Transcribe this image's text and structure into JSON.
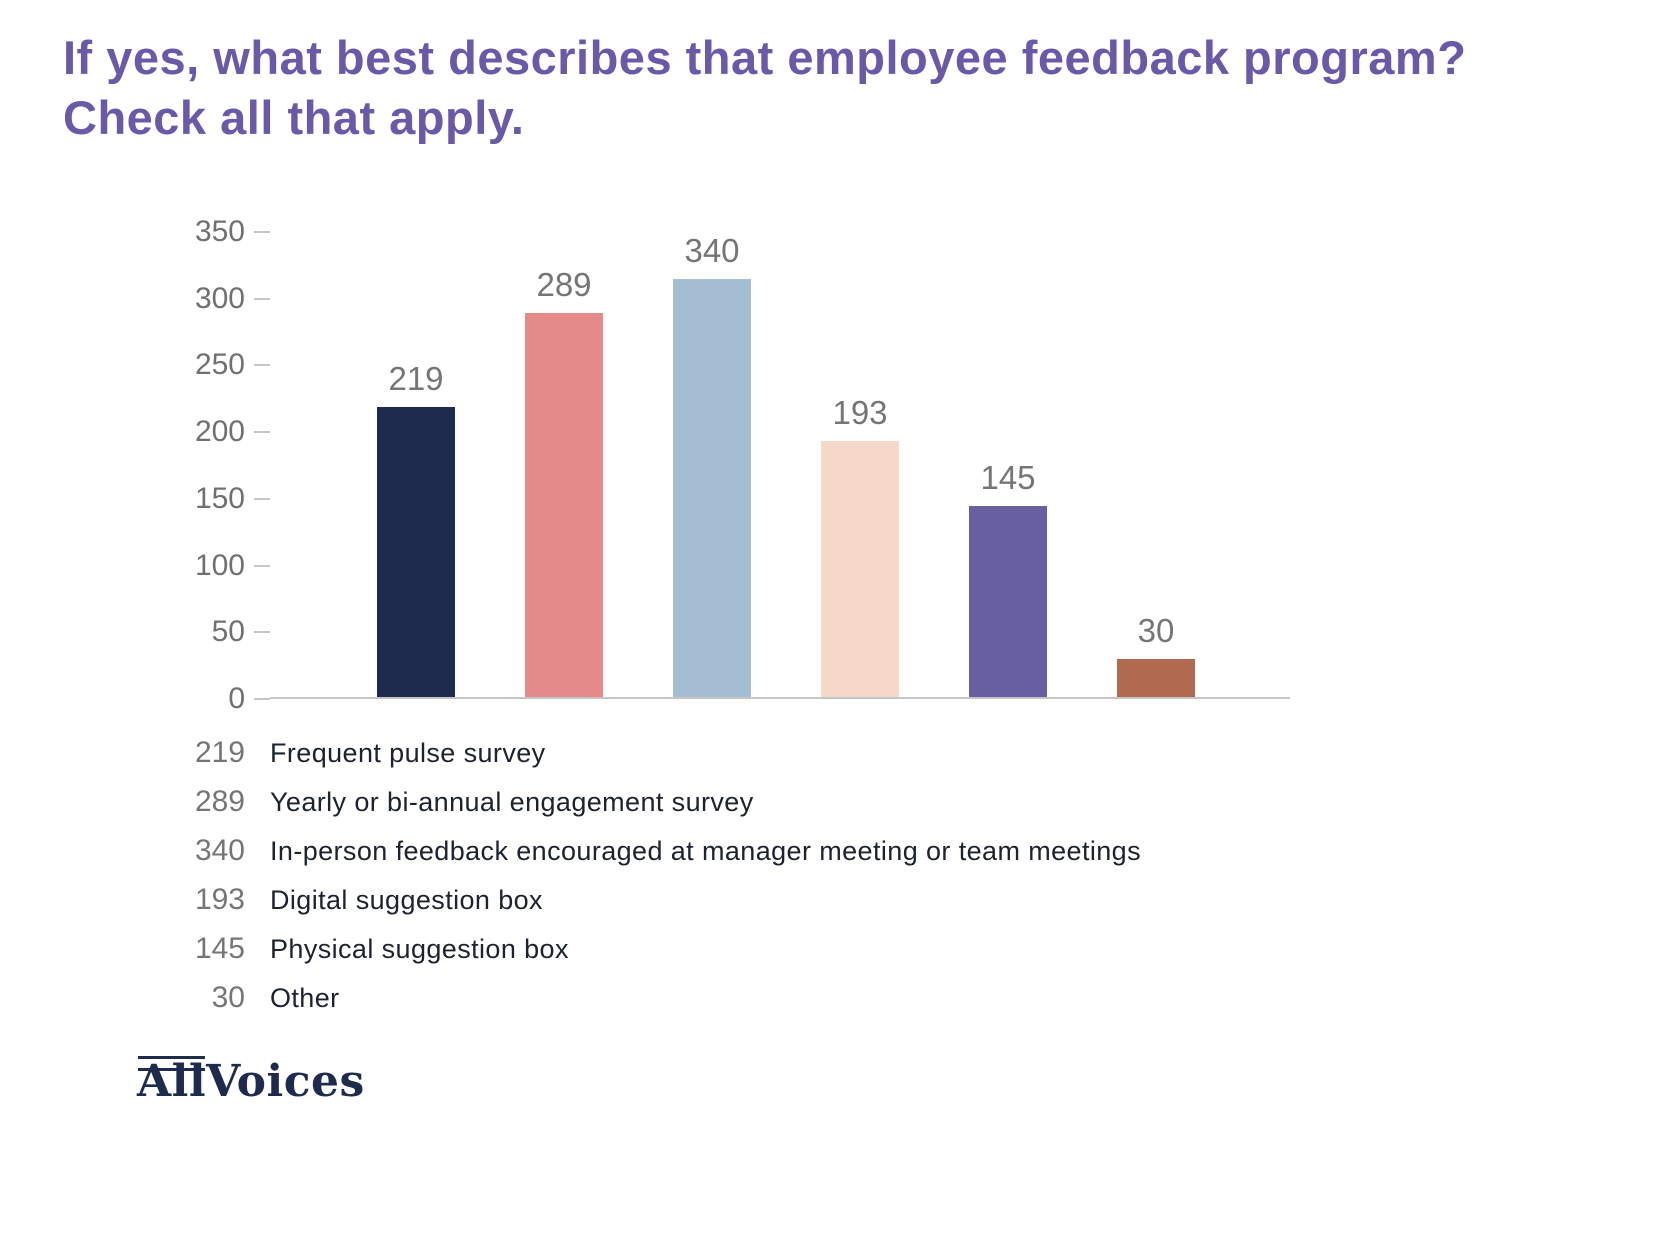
{
  "chart_data": {
    "type": "bar",
    "title": "If yes, what best describes that employee feedback program? Check all that apply.",
    "categories": [
      "Frequent pulse survey",
      "Yearly or bi-annual engagement survey",
      "In-person feedback encouraged at manager meeting or team meetings",
      "Digital suggestion box",
      "Physical suggestion box",
      "Other"
    ],
    "values": [
      219,
      289,
      340,
      193,
      145,
      30
    ],
    "bar_colors": [
      "#1e2b4d",
      "#e58a8b",
      "#a4bdd3",
      "#f6d8cb",
      "#675f9f",
      "#b06a50"
    ],
    "xlabel": "",
    "ylabel": "",
    "ylim": [
      0,
      350
    ],
    "yticks": [
      350,
      300,
      250,
      200,
      150,
      100,
      50,
      0
    ],
    "grid": false,
    "legend_position": "below"
  },
  "legend": {
    "items": [
      {
        "value": "219",
        "label": "Frequent pulse survey"
      },
      {
        "value": "289",
        "label": "Yearly or bi-annual engagement survey"
      },
      {
        "value": "340",
        "label": "In-person feedback encouraged at manager meeting or team meetings"
      },
      {
        "value": "193",
        "label": "Digital suggestion box"
      },
      {
        "value": "145",
        "label": "Physical suggestion box"
      },
      {
        "value": "30",
        "label": "Other"
      }
    ]
  },
  "logo": {
    "all": "All",
    "voices": "Voices"
  },
  "colors": {
    "title": "#6a59a6",
    "axis_text": "#707070",
    "value_label": "#757575",
    "legend_value": "#757575",
    "legend_label": "#1c2230",
    "baseline": "#c6c6c6",
    "logo": "#1e2b4d"
  }
}
